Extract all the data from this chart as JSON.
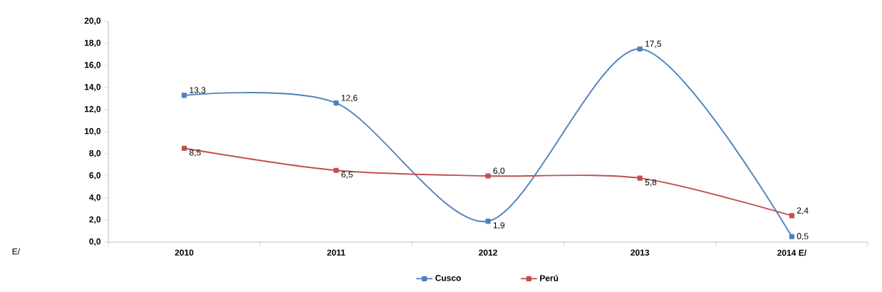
{
  "chart_data": {
    "type": "line",
    "categories": [
      "2010",
      "2011",
      "2012",
      "2013",
      "2014 E/"
    ],
    "series": [
      {
        "name": "Cusco",
        "color": "#4f81bd",
        "values": [
          13.3,
          12.6,
          1.9,
          17.5,
          0.5
        ],
        "value_labels": [
          "13,3",
          "12,6",
          "1,9",
          "17,5",
          "0,5"
        ]
      },
      {
        "name": "Perú",
        "color": "#c0504d",
        "values": [
          8.5,
          6.5,
          6.0,
          5.8,
          2.4
        ],
        "value_labels": [
          "8,5",
          "6,5",
          "6,0",
          "5,8",
          "2,4"
        ]
      }
    ],
    "ylim": [
      0,
      20
    ],
    "yticks": [
      {
        "value": 0,
        "label": "0,0"
      },
      {
        "value": 2,
        "label": "2,0"
      },
      {
        "value": 4,
        "label": "4,0"
      },
      {
        "value": 6,
        "label": "6,0"
      },
      {
        "value": 8,
        "label": "8,0"
      },
      {
        "value": 10,
        "label": "10,0"
      },
      {
        "value": 12,
        "label": "12,0"
      },
      {
        "value": 14,
        "label": "14,0"
      },
      {
        "value": 16,
        "label": "16,0"
      },
      {
        "value": 18,
        "label": "18,0"
      },
      {
        "value": 20,
        "label": "20,0"
      }
    ],
    "grid": false,
    "legend": "bottom",
    "marker": "square",
    "line_style": "solid",
    "annotations": [
      "E/"
    ]
  }
}
